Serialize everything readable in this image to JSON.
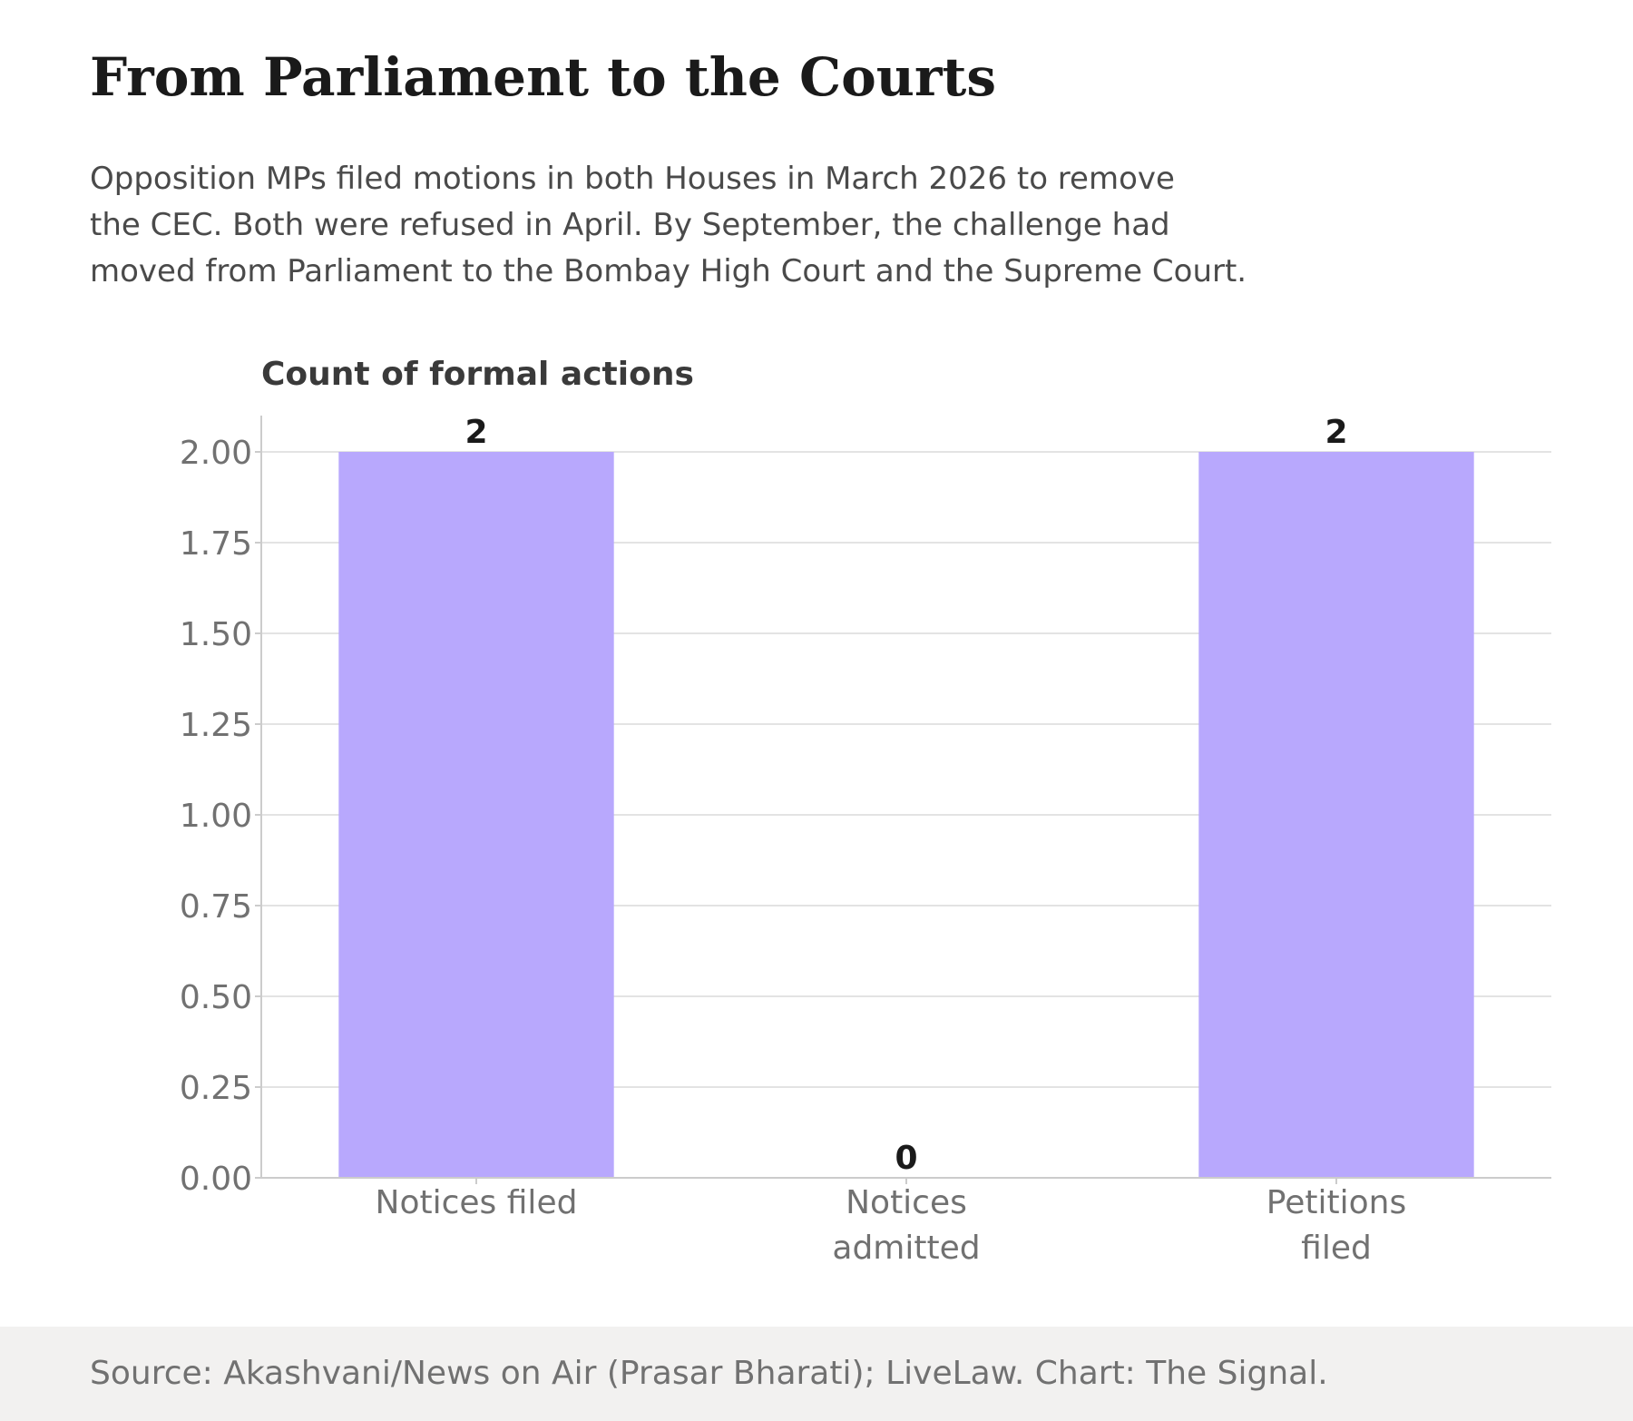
{
  "header": {
    "title": "From Parliament to the Courts",
    "subtitle_lines": [
      "Opposition MPs filed motions in both Houses in March 2026 to remove",
      "the CEC. Both were refused in April. By September, the challenge had",
      "moved from Parliament to the Bombay High Court and the Supreme Court."
    ]
  },
  "footer": {
    "source": "Source: Akashvani/News on Air (Prasar Bharati); LiveLaw. Chart: The Signal."
  },
  "colors": {
    "bar": "#b8a8fd",
    "grid": "#e3e3e3",
    "axis": "#cccccc",
    "tick_text": "#717171",
    "value_label": "#1a1a1a",
    "ylabel": "#3a3a3a",
    "footer_bg": "#f2f1f0"
  },
  "chart_data": {
    "type": "bar",
    "ylabel": "Count of formal actions",
    "categories": [
      [
        "Notices filed"
      ],
      [
        "Notices",
        "admitted"
      ],
      [
        "Petitions",
        "filed"
      ]
    ],
    "values": [
      2,
      0,
      2
    ],
    "value_labels": [
      "2",
      "0",
      "2"
    ],
    "ylim": [
      0,
      2.1
    ],
    "yticks": [
      "0.00",
      "0.25",
      "0.50",
      "0.75",
      "1.00",
      "1.25",
      "1.50",
      "1.75",
      "2.00"
    ],
    "ytick_values": [
      0,
      0.25,
      0.5,
      0.75,
      1.0,
      1.25,
      1.5,
      1.75,
      2.0
    ],
    "grid": true,
    "legend": "none"
  }
}
